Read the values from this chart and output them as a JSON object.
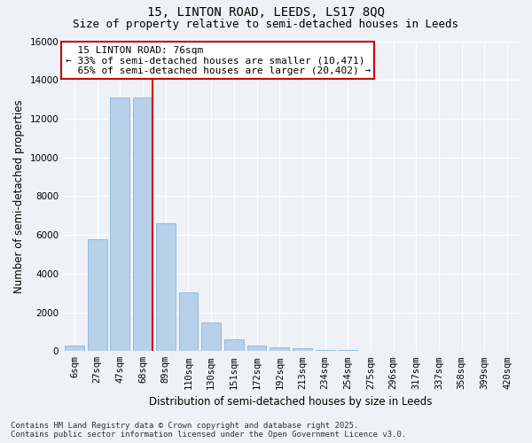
{
  "title": "15, LINTON ROAD, LEEDS, LS17 8QQ",
  "subtitle": "Size of property relative to semi-detached houses in Leeds",
  "xlabel": "Distribution of semi-detached houses by size in Leeds",
  "ylabel": "Number of semi-detached properties",
  "footnote": "Contains HM Land Registry data © Crown copyright and database right 2025.\nContains public sector information licensed under the Open Government Licence v3.0.",
  "bar_labels": [
    "6sqm",
    "27sqm",
    "47sqm",
    "68sqm",
    "89sqm",
    "110sqm",
    "130sqm",
    "151sqm",
    "172sqm",
    "192sqm",
    "213sqm",
    "234sqm",
    "254sqm",
    "275sqm",
    "296sqm",
    "317sqm",
    "337sqm",
    "358sqm",
    "399sqm",
    "420sqm"
  ],
  "bar_values": [
    300,
    5800,
    13100,
    13100,
    6600,
    3050,
    1480,
    620,
    270,
    175,
    130,
    75,
    50,
    30,
    10,
    5,
    3,
    2,
    1,
    0
  ],
  "bar_color": "#b8d0ea",
  "bar_edgecolor": "#7aadd4",
  "vline_x_idx": 3.42,
  "ylim": [
    0,
    16000
  ],
  "yticks": [
    0,
    2000,
    4000,
    6000,
    8000,
    10000,
    12000,
    14000,
    16000
  ],
  "background_color": "#eef2f8",
  "grid_color": "#ffffff",
  "annotation_box_facecolor": "#ffffff",
  "annotation_border_color": "#cc0000",
  "vline_color": "#cc0000",
  "property_label": "15 LINTON ROAD: 76sqm",
  "pct_smaller": 33,
  "pct_larger": 65,
  "n_smaller": 10471,
  "n_larger": 20402,
  "title_fontsize": 10,
  "subtitle_fontsize": 9,
  "axis_label_fontsize": 8.5,
  "tick_fontsize": 7.5,
  "annotation_fontsize": 8,
  "footnote_fontsize": 6.5
}
